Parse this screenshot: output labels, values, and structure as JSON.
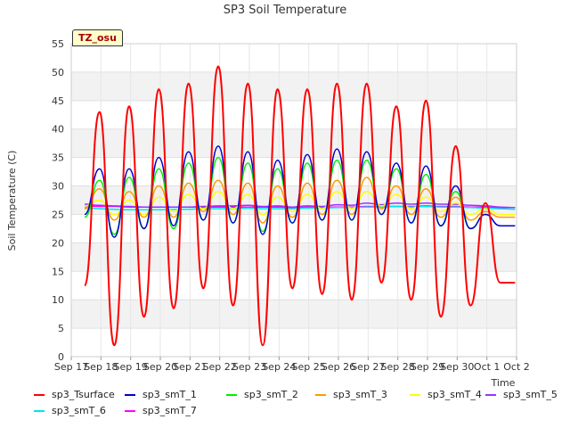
{
  "chart_data": {
    "type": "line",
    "title": "SP3 Soil Temperature",
    "xlabel": "Time",
    "ylabel": "Soil Temperature (C)",
    "ylim": [
      0,
      55
    ],
    "yticks": [
      0,
      5,
      10,
      15,
      20,
      25,
      30,
      35,
      40,
      45,
      50,
      55
    ],
    "xlim": [
      "2021-09-17",
      "2021-10-02"
    ],
    "xticks": [
      "Sep 17",
      "Sep 18",
      "Sep 19",
      "Sep 20",
      "Sep 21",
      "Sep 22",
      "Sep 23",
      "Sep 24",
      "Sep 25",
      "Sep 26",
      "Sep 27",
      "Sep 28",
      "Sep 29",
      "Sep 30",
      "Oct 1",
      "Oct 2"
    ],
    "grid": true,
    "legend_position": "bottom",
    "annotation": "TZ_osu",
    "x": [
      "Sep 17",
      "Sep 17.5",
      "Sep 18",
      "Sep 18.5",
      "Sep 19",
      "Sep 19.5",
      "Sep 20",
      "Sep 20.5",
      "Sep 21",
      "Sep 21.5",
      "Sep 22",
      "Sep 22.5",
      "Sep 23",
      "Sep 23.5",
      "Sep 24",
      "Sep 24.5",
      "Sep 25",
      "Sep 25.5",
      "Sep 26",
      "Sep 26.5",
      "Sep 27",
      "Sep 27.5",
      "Sep 28",
      "Sep 28.5",
      "Sep 29",
      "Sep 29.5",
      "Sep 30",
      "Sep 30.5",
      "Oct 1",
      "Oct 1.5"
    ],
    "series": [
      {
        "name": "sp3_Tsurface",
        "color": "#ff0000",
        "values": [
          12.5,
          43,
          2,
          44,
          7,
          47,
          8.5,
          48,
          12,
          51,
          9,
          48,
          2,
          47,
          12,
          47,
          11,
          48,
          10,
          48,
          13,
          44,
          10,
          45,
          7,
          37,
          9,
          27,
          13,
          13
        ]
      },
      {
        "name": "sp3_smT_1",
        "color": "#0000cc",
        "values": [
          25,
          33,
          21,
          33,
          22.5,
          35,
          23,
          36,
          24,
          37,
          23.5,
          36,
          21.5,
          34.5,
          23.5,
          35.5,
          24,
          36.5,
          24,
          36,
          25,
          34,
          23.5,
          33.5,
          23,
          30,
          22.5,
          25,
          23,
          23
        ]
      },
      {
        "name": "sp3_smT_2",
        "color": "#00ee00",
        "values": [
          24.5,
          31,
          21.5,
          31.5,
          22.5,
          33,
          22.5,
          34,
          24,
          35,
          23.5,
          34,
          22,
          33,
          23.5,
          34,
          24,
          34.5,
          24,
          34.5,
          25,
          33,
          23.5,
          32,
          23,
          29,
          22.5,
          25,
          23,
          23
        ]
      },
      {
        "name": "sp3_smT_3",
        "color": "#ff9900",
        "values": [
          26,
          29.5,
          24,
          29,
          24.5,
          30,
          24.5,
          30.5,
          25.5,
          31,
          25,
          30.5,
          23.5,
          30,
          24.5,
          30.5,
          25,
          31,
          25,
          31.5,
          26,
          30,
          25,
          29.5,
          24.5,
          28,
          24,
          25.5,
          24.5,
          24.5
        ]
      },
      {
        "name": "sp3_smT_4",
        "color": "#ffff00",
        "values": [
          26.5,
          27.5,
          25,
          27.5,
          25,
          28,
          25.5,
          28.5,
          26,
          29,
          26,
          28.5,
          25,
          28,
          25.5,
          28.5,
          26,
          29,
          26,
          29,
          26.5,
          28.5,
          26,
          28,
          25.5,
          27,
          25,
          26,
          25,
          25
        ]
      },
      {
        "name": "sp3_smT_5",
        "color": "#9933ff",
        "values": [
          26.8,
          26.6,
          26.5,
          26.4,
          26.3,
          26.3,
          26.3,
          26.3,
          26.4,
          26.5,
          26.5,
          26.6,
          26.4,
          26.5,
          26.3,
          26.5,
          26.4,
          26.7,
          26.6,
          27,
          26.7,
          27,
          26.8,
          27,
          26.8,
          26.8,
          26.6,
          26.5,
          26.3,
          26.2
        ]
      },
      {
        "name": "sp3_smT_6",
        "color": "#00e5ee",
        "values": [
          26.2,
          26,
          25.9,
          25.8,
          25.8,
          25.8,
          25.9,
          25.9,
          26,
          26,
          26,
          26.1,
          26,
          26,
          26,
          26.1,
          26.1,
          26.2,
          26.2,
          26.3,
          26.3,
          26.4,
          26.3,
          26.4,
          26.3,
          26.3,
          26.2,
          26.1,
          26,
          25.9
        ]
      },
      {
        "name": "sp3_smT_7",
        "color": "#ff00ff",
        "values": [
          26.5,
          26.4,
          26.4,
          26.3,
          26.3,
          26.3,
          26.3,
          26.3,
          26.3,
          26.3,
          26.3,
          26.3,
          26.3,
          26.3,
          26.2,
          26.3,
          26.3,
          26.3,
          26.3,
          26.4,
          26.4,
          26.4,
          26.4,
          26.5,
          26.4,
          26.4,
          26.3,
          26.3,
          26.2,
          26.2
        ]
      }
    ]
  }
}
